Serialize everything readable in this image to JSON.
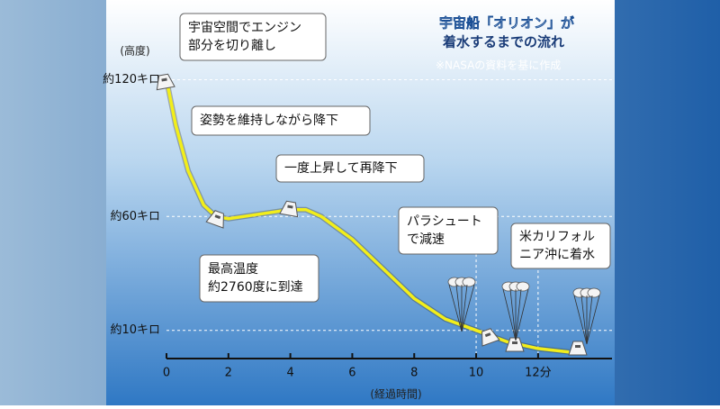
{
  "chart_data": {
    "type": "line",
    "title": [
      "宇宙船「オリオン」が",
      "着水するまでの流れ"
    ],
    "source": "※NASAの資料を基に作成",
    "x_label": "(経過時間)",
    "y_label": "(高度)",
    "x": [
      0,
      0.3,
      0.7,
      1.2,
      1.6,
      2,
      3,
      4,
      4.5,
      5,
      6,
      7,
      8,
      9,
      10,
      11,
      12,
      13
    ],
    "series": [
      {
        "name": "高度",
        "color": "#f2ee1a",
        "values": [
          120,
          100,
          80,
          65,
          60,
          59,
          61,
          63,
          63,
          60,
          50,
          37,
          24,
          15,
          10,
          5,
          2,
          0.5
        ]
      }
    ],
    "xlim": [
      0,
      14.3
    ],
    "ylim": [
      0,
      155
    ],
    "xticks": [
      0,
      2,
      4,
      6,
      8,
      10,
      {
        "value": 12,
        "label": "12分"
      }
    ],
    "yticks": [
      {
        "value": 10,
        "label": "約10キロ"
      },
      {
        "value": 60,
        "label": "約60キロ"
      },
      {
        "value": 120,
        "label": "約120キロ"
      }
    ],
    "grid": true,
    "annotations": [
      {
        "lines": [
          "宇宙空間でエンジン",
          "部分を切り離し"
        ]
      },
      {
        "lines": [
          "姿勢を維持しながら降下"
        ]
      },
      {
        "lines": [
          "一度上昇して再降下"
        ]
      },
      {
        "lines": [
          "最高温度",
          "約2760度に到達"
        ]
      },
      {
        "lines": [
          "パラシュート",
          "で減速"
        ]
      },
      {
        "lines": [
          "米カリフォル",
          "ニア沖に着水"
        ]
      }
    ]
  }
}
